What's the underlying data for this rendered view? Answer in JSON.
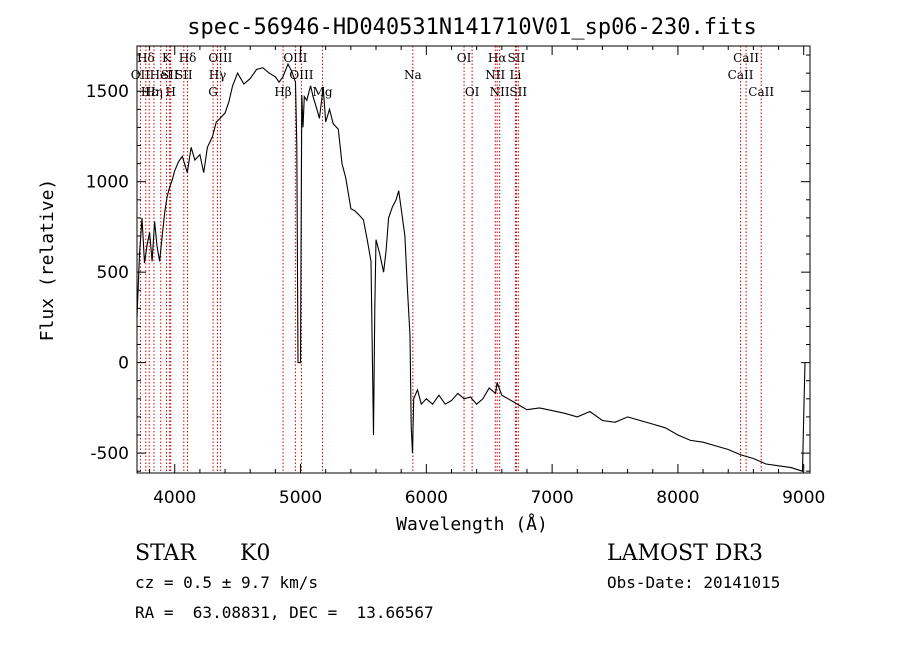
{
  "chart_data": {
    "type": "line",
    "title": "spec-56946-HD040531N141710V01_sp06-230.fits",
    "xlabel": "Wavelength (Å)",
    "ylabel": "Flux (relative)",
    "xlim": [
      3700,
      9050
    ],
    "ylim": [
      -610,
      1750
    ],
    "xticks": [
      4000,
      5000,
      6000,
      7000,
      8000,
      9000
    ],
    "yticks": [
      -500,
      0,
      500,
      1000,
      1500
    ],
    "grid": false,
    "line_color": "#000000",
    "marker_color": "#cc0000",
    "series": [
      {
        "x": [
          3700,
          3720,
          3740,
          3760,
          3780,
          3800,
          3820,
          3840,
          3860,
          3880,
          3900,
          3920,
          3940,
          3960,
          3980,
          4000,
          4030,
          4060,
          4100,
          4130,
          4160,
          4200,
          4230,
          4260,
          4300,
          4330,
          4360,
          4400,
          4430,
          4460,
          4500,
          4550,
          4600,
          4650,
          4700,
          4750,
          4800,
          4830,
          4860,
          4900,
          4930,
          4960,
          4970,
          4980,
          5000,
          5010,
          5020,
          5030,
          5050,
          5080,
          5100,
          5130,
          5150,
          5180,
          5200,
          5230,
          5260,
          5300,
          5330,
          5360,
          5400,
          5430,
          5460,
          5500,
          5530,
          5560,
          5580,
          5590,
          5600,
          5630,
          5660,
          5680,
          5700,
          5730,
          5760,
          5780,
          5800,
          5830,
          5850,
          5870,
          5880,
          5890,
          5900,
          5930,
          5960,
          6000,
          6050,
          6100,
          6150,
          6200,
          6250,
          6300,
          6350,
          6400,
          6450,
          6500,
          6550,
          6563,
          6600,
          6650,
          6700,
          6750,
          6800,
          6900,
          7000,
          7100,
          7200,
          7300,
          7400,
          7500,
          7600,
          7700,
          7800,
          7900,
          8000,
          8100,
          8200,
          8300,
          8400,
          8500,
          8600,
          8700,
          8800,
          8900,
          8990,
          9000,
          9010
        ],
        "y": [
          250,
          600,
          800,
          550,
          650,
          720,
          560,
          780,
          640,
          560,
          700,
          830,
          920,
          970,
          1010,
          1060,
          1110,
          1140,
          1050,
          1190,
          1120,
          1150,
          1050,
          1190,
          1250,
          1330,
          1350,
          1380,
          1440,
          1530,
          1600,
          1540,
          1570,
          1620,
          1630,
          1600,
          1580,
          1550,
          1580,
          1650,
          1610,
          1550,
          1200,
          0,
          0,
          1480,
          1300,
          1470,
          1450,
          1530,
          1470,
          1400,
          1350,
          1520,
          1330,
          1400,
          1320,
          1290,
          1100,
          1020,
          850,
          840,
          820,
          790,
          680,
          560,
          -400,
          300,
          680,
          600,
          500,
          620,
          800,
          860,
          900,
          950,
          850,
          700,
          400,
          150,
          -350,
          -500,
          -200,
          -150,
          -230,
          -200,
          -230,
          -180,
          -230,
          -210,
          -170,
          -200,
          -190,
          -230,
          -200,
          -140,
          -170,
          -110,
          -180,
          -200,
          -220,
          -240,
          -260,
          -250,
          -265,
          -280,
          -300,
          -270,
          -320,
          -330,
          -300,
          -320,
          -340,
          -360,
          -400,
          -430,
          -440,
          -460,
          -480,
          -510,
          -530,
          -560,
          -570,
          -580,
          -600,
          -300,
          0
        ]
      }
    ],
    "line_markers": [
      {
        "label": "Hδ",
        "x": 3770,
        "row": 1
      },
      {
        "label": "OII",
        "x": 3727,
        "row": 2
      },
      {
        "label": "Hε",
        "x": 3797,
        "row": 3
      },
      {
        "label": "Hη",
        "x": 3835,
        "row": 3
      },
      {
        "label": "HeI",
        "x": 3889,
        "row": 2
      },
      {
        "label": "K",
        "x": 3934,
        "row": 1
      },
      {
        "label": "H",
        "x": 3968,
        "row": 3
      },
      {
        "label": "SII",
        "x": 3960,
        "row": 2
      },
      {
        "label": "Hδ",
        "x": 4102,
        "row": 1
      },
      {
        "label": "SII",
        "x": 4072,
        "row": 2
      },
      {
        "label": "OIII",
        "x": 4363,
        "row": 1
      },
      {
        "label": "Hγ",
        "x": 4340,
        "row": 2
      },
      {
        "label": "G",
        "x": 4305,
        "row": 3
      },
      {
        "label": "Hβ",
        "x": 4861,
        "row": 3
      },
      {
        "label": "OIII",
        "x": 4959,
        "row": 1
      },
      {
        "label": "OIII",
        "x": 5007,
        "row": 2
      },
      {
        "label": "Mg",
        "x": 5175,
        "row": 3
      },
      {
        "label": "Na",
        "x": 5893,
        "row": 2
      },
      {
        "label": "OI",
        "x": 6300,
        "row": 1
      },
      {
        "label": "OI",
        "x": 6364,
        "row": 3
      },
      {
        "label": "Hα",
        "x": 6563,
        "row": 1
      },
      {
        "label": "NII",
        "x": 6548,
        "row": 2
      },
      {
        "label": "NII",
        "x": 6583,
        "row": 3
      },
      {
        "label": "SII",
        "x": 6716,
        "row": 1
      },
      {
        "label": "Li",
        "x": 6708,
        "row": 2
      },
      {
        "label": "SII",
        "x": 6731,
        "row": 3
      },
      {
        "label": "CaII",
        "x": 8542,
        "row": 1
      },
      {
        "label": "CaII",
        "x": 8498,
        "row": 2
      },
      {
        "label": "CaII",
        "x": 8662,
        "row": 3
      }
    ]
  },
  "info": {
    "class_label": "STAR",
    "subclass": "K0",
    "survey": "LAMOST DR3",
    "cz": "cz = 0.5 ± 9.7 km/s",
    "obs_date": "Obs-Date: 20141015",
    "coords": "RA =  63.08831, DEC =  13.66567"
  }
}
